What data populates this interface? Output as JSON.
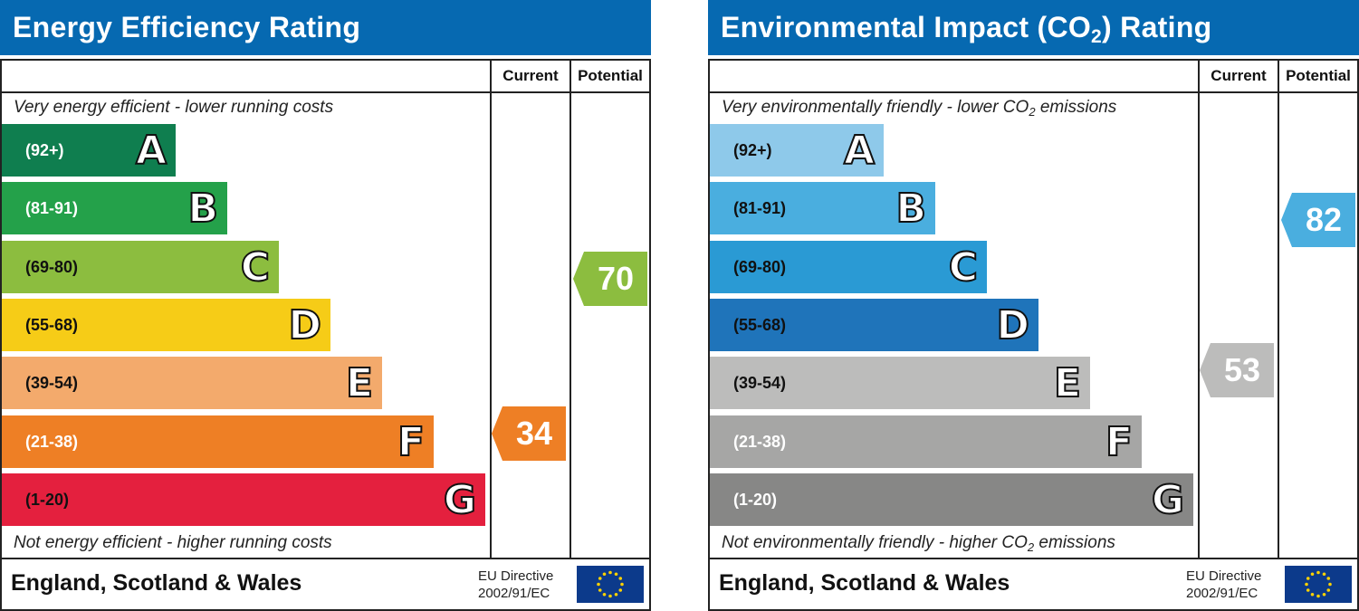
{
  "panels": [
    {
      "title": "Energy Efficiency Rating",
      "title_sub": "",
      "title_after": "",
      "columns": {
        "current": "Current",
        "potential": "Potential"
      },
      "top_note": "Very energy efficient - lower running costs",
      "bottom_note": "Not energy efficient - higher running costs",
      "footer": {
        "region": "England, Scotland & Wales",
        "directive_line1": "EU Directive",
        "directive_line2": "2002/91/EC"
      }
    },
    {
      "title": "Environmental Impact (CO",
      "title_sub": "2",
      "title_after": ") Rating",
      "columns": {
        "current": "Current",
        "potential": "Potential"
      },
      "top_note": "Very environmentally friendly - lower CO",
      "top_note_sub": "2",
      "top_note_after": " emissions",
      "bottom_note": "Not environmentally friendly - higher CO",
      "bottom_note_sub": "2",
      "bottom_note_after": " emissions",
      "footer": {
        "region": "England, Scotland & Wales",
        "directive_line1": "EU Directive",
        "directive_line2": "2002/91/EC"
      }
    }
  ],
  "chart_data": [
    {
      "type": "bar",
      "title": "Energy Efficiency Rating",
      "categories": [
        "A",
        "B",
        "C",
        "D",
        "E",
        "F",
        "G"
      ],
      "ranges": [
        "(92+)",
        "(81-91)",
        "(69-80)",
        "(55-68)",
        "(39-54)",
        "(21-38)",
        "(1-20)"
      ],
      "band_min": [
        92,
        81,
        69,
        55,
        39,
        21,
        1
      ],
      "colors": [
        "#0f7e4f",
        "#24a14a",
        "#8cbd3f",
        "#f6cc17",
        "#f3aa6c",
        "#ee7f25",
        "#e4203e"
      ],
      "range_text_colors": [
        "#ffffff",
        "#ffffff",
        "#111111",
        "#111111",
        "#111111",
        "#ffffff",
        "#111111"
      ],
      "current": {
        "label": "Current",
        "value": 34,
        "band": "F",
        "color": "#ee7f25"
      },
      "potential": {
        "label": "Potential",
        "value": 70,
        "band": "C",
        "color": "#8cbd3f"
      }
    },
    {
      "type": "bar",
      "title": "Environmental Impact (CO2) Rating",
      "categories": [
        "A",
        "B",
        "C",
        "D",
        "E",
        "F",
        "G"
      ],
      "ranges": [
        "(92+)",
        "(81-91)",
        "(69-80)",
        "(55-68)",
        "(39-54)",
        "(21-38)",
        "(1-20)"
      ],
      "band_min": [
        92,
        81,
        69,
        55,
        39,
        21,
        1
      ],
      "colors": [
        "#8ec9ea",
        "#4aaedf",
        "#2a9ad4",
        "#1f74ba",
        "#bcbcbb",
        "#a6a6a5",
        "#878786"
      ],
      "range_text_colors": [
        "#111111",
        "#111111",
        "#111111",
        "#111111",
        "#111111",
        "#ffffff",
        "#ffffff"
      ],
      "current": {
        "label": "Current",
        "value": 53,
        "band": "E",
        "color": "#bcbcbb"
      },
      "potential": {
        "label": "Potential",
        "value": 82,
        "band": "B",
        "color": "#4aaedf"
      }
    }
  ]
}
